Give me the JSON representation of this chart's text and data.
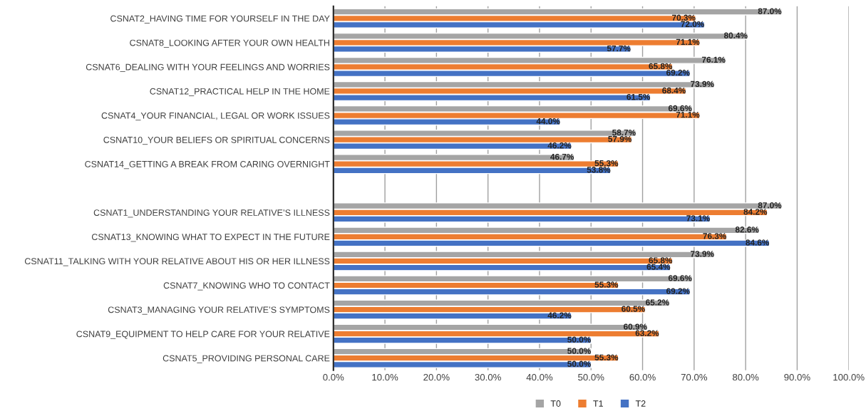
{
  "chart_data": {
    "type": "bar",
    "orientation": "horizontal",
    "categories": [
      "CSNAT2_HAVING TIME FOR YOURSELF IN THE DAY",
      "CSNAT8_LOOKING AFTER YOUR OWN HEALTH",
      "CSNAT6_DEALING WITH YOUR FEELINGS AND WORRIES",
      "CSNAT12_PRACTICAL HELP IN THE HOME",
      "CSNAT4_YOUR FINANCIAL, LEGAL OR WORK ISSUES",
      "CSNAT10_YOUR BELIEFS OR SPIRITUAL CONCERNS",
      "CSNAT14_GETTING A BREAK FROM CARING OVERNIGHT",
      null,
      "CSNAT1_UNDERSTANDING YOUR RELATIVE’S ILLNESS",
      "CSNAT13_KNOWING WHAT TO EXPECT IN THE FUTURE",
      "CSNAT11_TALKING WITH YOUR RELATIVE ABOUT HIS OR HER ILLNESS",
      "CSNAT7_KNOWING WHO TO CONTACT",
      "CSNAT3_MANAGING YOUR RELATIVE’S SYMPTOMS",
      "CSNAT9_EQUIPMENT TO HELP CARE FOR YOUR RELATIVE",
      "CSNAT5_PROVIDING PERSONAL CARE"
    ],
    "series": [
      {
        "name": "T0",
        "color": "#a5a5a5",
        "values": [
          87.0,
          80.4,
          76.1,
          73.9,
          69.6,
          58.7,
          46.7,
          null,
          87.0,
          82.6,
          73.9,
          69.6,
          65.2,
          60.9,
          50.0
        ],
        "value_labels": [
          "87.0%",
          "80.4%",
          "76.1%",
          "73.9%",
          "69.6%",
          "58.7%",
          "46.7%",
          null,
          "87.0%",
          "82.6%",
          "73.9%",
          "69.6%",
          "65.2%",
          "60.9%",
          "50.0%"
        ]
      },
      {
        "name": "T1",
        "color": "#ed7d31",
        "values": [
          70.3,
          71.1,
          65.8,
          68.4,
          71.1,
          57.9,
          55.3,
          null,
          84.2,
          76.3,
          65.8,
          55.3,
          60.5,
          63.2,
          55.3
        ],
        "value_labels": [
          "70.3%",
          "71.1%",
          "65.8%",
          "68.4%",
          "71.1%",
          "57.9%",
          "55.3%",
          null,
          "84.2%",
          "76.3%",
          "65.8%",
          "55.3%",
          "60.5%",
          "63.2%",
          "55.3%"
        ]
      },
      {
        "name": "T2",
        "color": "#4472c4",
        "values": [
          72.0,
          57.7,
          69.2,
          61.5,
          44.0,
          46.2,
          53.8,
          null,
          73.1,
          84.6,
          65.4,
          69.2,
          46.2,
          50.0,
          50.0
        ],
        "value_labels": [
          "72.0%",
          "57.7%",
          "69.2%",
          "61.5%",
          "44.0%",
          "46.2%",
          "53.8%",
          null,
          "73.1%",
          "84.6%",
          "65.4%",
          "69.2%",
          "46.2%",
          "50.0%",
          "50.0%"
        ]
      }
    ],
    "xlim": [
      0,
      100
    ],
    "xticks": [
      {
        "value": 0,
        "label": "0.0%"
      },
      {
        "value": 10,
        "label": "10.0%"
      },
      {
        "value": 20,
        "label": "20.0%"
      },
      {
        "value": 30,
        "label": "30.0%"
      },
      {
        "value": 40,
        "label": "40.0%"
      },
      {
        "value": 50,
        "label": "50.0%"
      },
      {
        "value": 60,
        "label": "60.0%"
      },
      {
        "value": 70,
        "label": "70.0%"
      },
      {
        "value": 80,
        "label": "80.0%"
      },
      {
        "value": 90,
        "label": "90.0%"
      },
      {
        "value": 100,
        "label": "100.0%"
      }
    ],
    "grid": "x",
    "legend": "bottom"
  }
}
